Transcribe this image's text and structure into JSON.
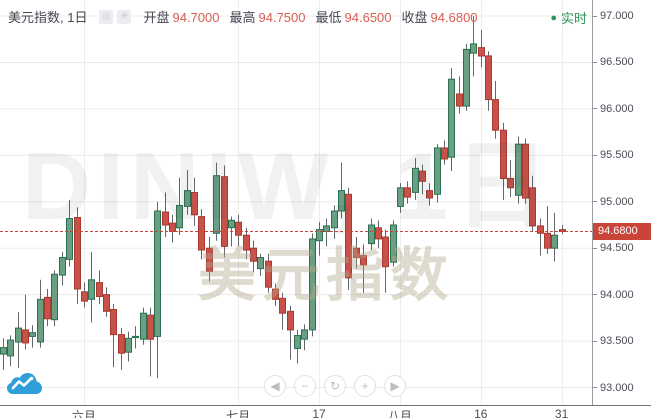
{
  "header": {
    "symbol_title": "美元指数, 1日",
    "eye_icon": "◎",
    "settings_icon": "✳",
    "ohlc": [
      {
        "label": "开盘",
        "value": "94.7000"
      },
      {
        "label": "最高",
        "value": "94.7500"
      },
      {
        "label": "最低",
        "value": "94.6500"
      },
      {
        "label": "收盘",
        "value": "94.6800"
      }
    ],
    "realtime_dot": "●",
    "realtime_label": "实时"
  },
  "watermark": {
    "line1": "DINIW, 1日",
    "line2": "美元指数"
  },
  "price_badge": {
    "value": "94.6800"
  },
  "nav": {
    "buttons": [
      {
        "name": "pan-left",
        "glyph": "◀"
      },
      {
        "name": "zoom-out",
        "glyph": "−"
      },
      {
        "name": "reset-view",
        "glyph": "↻"
      },
      {
        "name": "zoom-in",
        "glyph": "+"
      },
      {
        "name": "pan-right",
        "glyph": "▶"
      }
    ]
  },
  "colors": {
    "up_fill": "#69a084",
    "up_stroke": "#2e6e51",
    "down_fill": "#c85149",
    "down_stroke": "#a93a31",
    "wick": "#62666e",
    "grid": "#ececec",
    "last_price_line": "#cc4434",
    "badge_bg": "#ca4539",
    "value_red": "#d75f54",
    "realtime_green": "#2c9659"
  },
  "chart_data": {
    "type": "candlestick",
    "title": "美元指数 (DINIW), 1日",
    "legend": "开盘/最高/最低/收盘 daily candles",
    "ylim": [
      92.81,
      97.17
    ],
    "grid": true,
    "last_price": 94.68,
    "y_ticks": [
      "97.000",
      "96.500",
      "96.000",
      "95.500",
      "95.000",
      "94.500",
      "94.000",
      "93.500",
      "93.000"
    ],
    "x_ticks": [
      {
        "label": "六月",
        "index": 11
      },
      {
        "label": "七月",
        "index": 32
      },
      {
        "label": "17",
        "index": 43
      },
      {
        "label": "八月",
        "index": 54
      },
      {
        "label": "16",
        "index": 65
      },
      {
        "label": "31",
        "index": 76
      }
    ],
    "candles": [
      [
        93.36,
        93.53,
        93.19,
        93.43
      ],
      [
        93.34,
        93.56,
        93.23,
        93.51
      ],
      [
        93.49,
        93.81,
        93.21,
        93.64
      ],
      [
        93.62,
        94.0,
        93.41,
        93.48
      ],
      [
        93.55,
        93.67,
        93.43,
        93.59
      ],
      [
        93.49,
        94.16,
        93.43,
        93.95
      ],
      [
        93.97,
        94.06,
        93.66,
        93.74
      ],
      [
        93.73,
        94.26,
        93.66,
        94.22
      ],
      [
        94.21,
        94.46,
        94.1,
        94.4
      ],
      [
        94.38,
        95.02,
        94.3,
        94.82
      ],
      [
        94.83,
        94.94,
        93.9,
        94.06
      ],
      [
        94.03,
        94.13,
        93.86,
        93.93
      ],
      [
        93.95,
        94.46,
        93.7,
        94.16
      ],
      [
        94.13,
        94.26,
        93.9,
        93.98
      ],
      [
        94.0,
        94.08,
        93.76,
        93.82
      ],
      [
        93.84,
        93.9,
        93.22,
        93.57
      ],
      [
        93.57,
        93.64,
        93.19,
        93.37
      ],
      [
        93.38,
        93.6,
        93.28,
        93.53
      ],
      [
        93.55,
        93.66,
        93.42,
        93.55
      ],
      [
        93.52,
        93.86,
        93.46,
        93.8
      ],
      [
        93.78,
        93.86,
        93.12,
        93.52
      ],
      [
        93.55,
        95.0,
        93.1,
        94.9
      ],
      [
        94.89,
        95.1,
        94.62,
        94.75
      ],
      [
        94.77,
        94.86,
        94.56,
        94.68
      ],
      [
        94.72,
        95.26,
        94.64,
        94.96
      ],
      [
        94.95,
        95.34,
        94.86,
        95.12
      ],
      [
        95.1,
        95.26,
        94.74,
        94.86
      ],
      [
        94.84,
        94.92,
        94.38,
        94.48
      ],
      [
        94.5,
        94.62,
        94.14,
        94.25
      ],
      [
        94.66,
        95.42,
        94.58,
        95.28
      ],
      [
        95.27,
        95.39,
        94.4,
        94.52
      ],
      [
        94.72,
        94.84,
        94.52,
        94.8
      ],
      [
        94.78,
        94.86,
        94.52,
        94.64
      ],
      [
        94.64,
        94.72,
        94.38,
        94.48
      ],
      [
        94.5,
        94.58,
        94.24,
        94.36
      ],
      [
        94.28,
        94.44,
        94.2,
        94.4
      ],
      [
        94.36,
        94.44,
        94.02,
        94.08
      ],
      [
        94.06,
        94.12,
        93.88,
        93.95
      ],
      [
        93.96,
        94.02,
        93.62,
        93.8
      ],
      [
        93.82,
        93.88,
        93.3,
        93.62
      ],
      [
        93.42,
        93.62,
        93.26,
        93.56
      ],
      [
        93.52,
        93.68,
        93.4,
        93.62
      ],
      [
        93.62,
        94.66,
        93.55,
        94.6
      ],
      [
        94.58,
        94.78,
        94.42,
        94.7
      ],
      [
        94.68,
        94.82,
        94.52,
        94.74
      ],
      [
        94.72,
        94.96,
        94.6,
        94.9
      ],
      [
        94.9,
        95.42,
        94.82,
        95.12
      ],
      [
        95.08,
        95.15,
        94.05,
        94.18
      ],
      [
        94.5,
        94.62,
        94.28,
        94.4
      ],
      [
        94.42,
        94.54,
        94.02,
        94.32
      ],
      [
        94.55,
        94.82,
        94.48,
        94.75
      ],
      [
        94.72,
        94.8,
        94.5,
        94.6
      ],
      [
        94.62,
        94.7,
        94.02,
        94.3
      ],
      [
        94.35,
        94.8,
        94.3,
        94.75
      ],
      [
        94.95,
        95.2,
        94.88,
        95.15
      ],
      [
        95.15,
        95.22,
        94.98,
        95.05
      ],
      [
        95.1,
        95.47,
        95.02,
        95.36
      ],
      [
        95.33,
        95.4,
        95.08,
        95.22
      ],
      [
        95.12,
        95.2,
        94.96,
        95.04
      ],
      [
        95.08,
        95.62,
        94.99,
        95.58
      ],
      [
        95.58,
        95.66,
        95.4,
        95.46
      ],
      [
        95.48,
        96.44,
        95.33,
        96.32
      ],
      [
        96.16,
        96.35,
        95.95,
        96.03
      ],
      [
        96.03,
        96.7,
        95.98,
        96.64
      ],
      [
        96.6,
        97.0,
        96.35,
        96.7
      ],
      [
        96.66,
        96.85,
        96.45,
        96.57
      ],
      [
        96.57,
        96.62,
        95.98,
        96.1
      ],
      [
        96.1,
        96.3,
        95.68,
        95.77
      ],
      [
        95.77,
        95.85,
        95.02,
        95.25
      ],
      [
        95.25,
        95.45,
        95.05,
        95.15
      ],
      [
        95.07,
        95.7,
        94.98,
        95.62
      ],
      [
        95.62,
        95.68,
        94.98,
        95.04
      ],
      [
        95.15,
        95.28,
        94.68,
        94.74
      ],
      [
        94.74,
        94.82,
        94.42,
        94.66
      ],
      [
        94.66,
        94.95,
        94.44,
        94.5
      ],
      [
        94.5,
        94.88,
        94.36,
        94.64
      ],
      [
        94.7,
        94.75,
        94.65,
        94.68
      ]
    ]
  }
}
